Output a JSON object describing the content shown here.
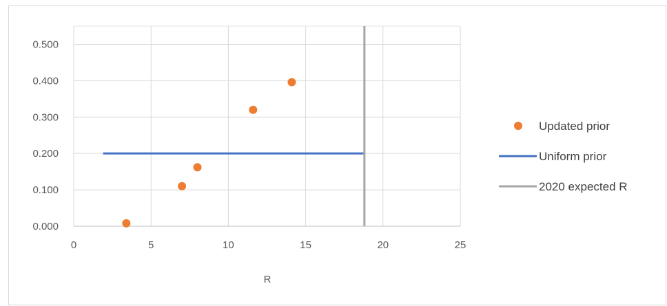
{
  "chart_data": {
    "type": "scatter",
    "title": "",
    "xlabel": "R",
    "ylabel": "",
    "xlim": [
      0,
      25
    ],
    "ylim": [
      0,
      0.5
    ],
    "x_ticks": [
      0,
      5,
      10,
      15,
      20,
      25
    ],
    "y_ticks": [
      0,
      0.1,
      0.2,
      0.3,
      0.4,
      0.5
    ],
    "x_tick_labels": [
      "0",
      "5",
      "10",
      "15",
      "20",
      "25"
    ],
    "y_tick_labels": [
      "0.000",
      "0.100",
      "0.200",
      "0.300",
      "0.400",
      "0.500"
    ],
    "grid": true,
    "legend_position": "right",
    "series": [
      {
        "name": "Updated prior",
        "kind": "scatter",
        "color": "#ED7D31",
        "x": [
          3.4,
          7.0,
          8.0,
          11.6,
          14.1
        ],
        "y": [
          0.008,
          0.11,
          0.162,
          0.32,
          0.396
        ]
      },
      {
        "name": "Uniform prior",
        "kind": "line",
        "color": "#4472C4",
        "x": [
          1.9,
          18.8
        ],
        "y": [
          0.2,
          0.2
        ]
      },
      {
        "name": "2020 expected R",
        "kind": "line",
        "color": "#A5A5A5",
        "x": [
          18.8,
          18.8
        ],
        "y": [
          0,
          0.55
        ]
      }
    ]
  }
}
